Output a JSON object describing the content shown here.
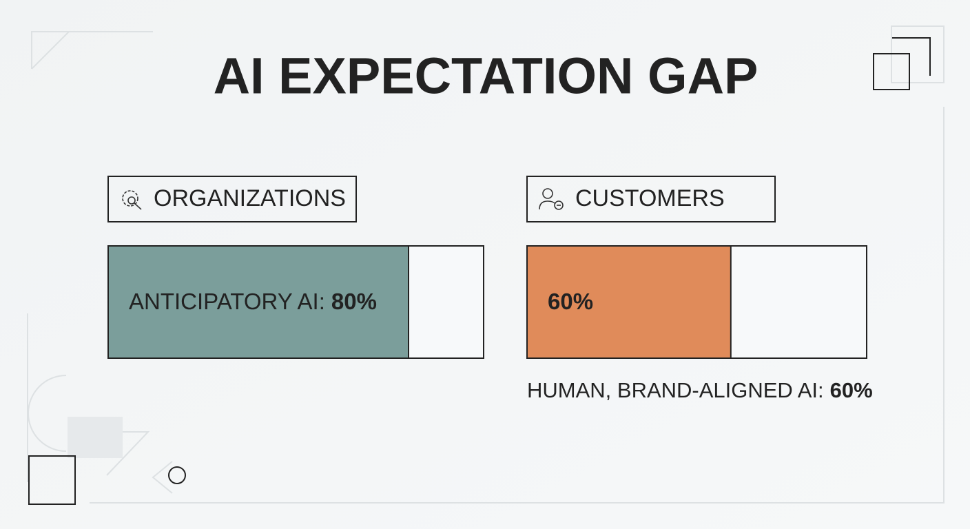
{
  "title": "AI EXPECTATION GAP",
  "chart_data": [
    {
      "type": "bar",
      "title": "ORGANIZATIONS",
      "categories": [
        "ANTICIPATORY AI:"
      ],
      "values": [
        80
      ],
      "value_labels": [
        "80%"
      ],
      "color": "#7b9e9b",
      "xlim": [
        0,
        100
      ]
    },
    {
      "type": "bar",
      "title": "CUSTOMERS",
      "categories": [
        "HUMAN, BRAND-ALIGNED AI:"
      ],
      "values": [
        60
      ],
      "value_labels": [
        "60%"
      ],
      "color": "#e08b5a",
      "xlim": [
        0,
        100
      ]
    }
  ]
}
